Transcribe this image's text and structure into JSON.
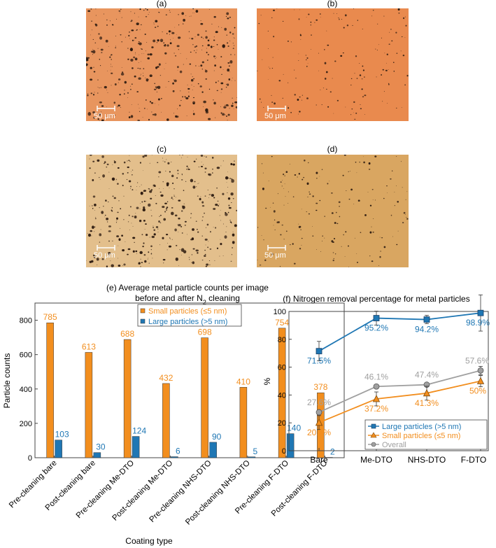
{
  "panels": [
    {
      "label": "(a)",
      "scale_bar": "50 μm",
      "color": "#e8955e",
      "particle_density": "high"
    },
    {
      "label": "(b)",
      "scale_bar": "50 μm",
      "color": "#e98a4e",
      "particle_density": "low"
    },
    {
      "label": "(c)",
      "scale_bar": "50 μm",
      "color": "#e3bf8c",
      "particle_density": "high"
    },
    {
      "label": "(d)",
      "scale_bar": "50 μm",
      "color": "#d9a661",
      "particle_density": "low"
    }
  ],
  "chart_data": [
    {
      "type": "bar",
      "title": "(e) Average metal particle counts per image",
      "subtitle": "before and after N",
      "subtitle_sub": "2",
      "subtitle_end": " cleaning",
      "xlabel": "Coating type",
      "ylabel": "Particle counts",
      "ylim": [
        0,
        900
      ],
      "yticks": [
        0,
        200,
        400,
        600,
        800
      ],
      "categories": [
        "Pre-cleaning bare",
        "Post-cleaning bare",
        "Pre-cleaning Me-DTO",
        "Post-cleaning Me-DTO",
        "Pre-cleaning NHS-DTO",
        "Post-cleaning NHS-DTO",
        "Pre-cleaning F-DTO",
        "Post-cleaning F-DTO"
      ],
      "series": [
        {
          "name": "Small particles (≤5 nm)",
          "color": "#f28e1e",
          "values": [
            785,
            613,
            688,
            432,
            698,
            410,
            754,
            378
          ],
          "labels": [
            "785",
            "613",
            "688",
            "432",
            "698",
            "410",
            "754",
            "378"
          ]
        },
        {
          "name": "Large particles (>5 nm)",
          "color": "#1f77b4",
          "values": [
            103,
            30,
            124,
            6,
            90,
            5,
            140,
            2
          ],
          "labels": [
            "103",
            "30",
            "124",
            "6",
            "90",
            "5",
            "140",
            "2"
          ]
        }
      ],
      "legend": "top"
    },
    {
      "type": "line",
      "title": "(f) Nitrogen removal percentage for metal particles",
      "xlabel": "",
      "ylabel": "%",
      "ylim": [
        0,
        100
      ],
      "yticks": [
        0,
        20,
        40,
        60,
        80,
        100
      ],
      "categories": [
        "Bare",
        "Me-DTO",
        "NHS-DTO",
        "F-DTO"
      ],
      "series": [
        {
          "name": "Large particles (>5 nm)",
          "color": "#1f77b4",
          "marker": "square",
          "values": [
            71.5,
            95.2,
            94.2,
            98.9
          ],
          "labels": [
            "71.5%",
            "95.2%",
            "94.2%",
            "98.9%"
          ],
          "err": [
            7,
            5,
            3,
            13
          ]
        },
        {
          "name": "Small particles (≤5 nm)",
          "color": "#f28e1e",
          "marker": "triangle",
          "values": [
            20.2,
            37.2,
            41.3,
            50
          ],
          "labels": [
            "20.2%",
            "37.2%",
            "41.3%",
            "50%"
          ],
          "err": [
            5,
            5,
            5,
            4
          ]
        },
        {
          "name": "Overall",
          "color": "#a0a0a0",
          "marker": "circle",
          "values": [
            27.6,
            46.1,
            47.4,
            57.6
          ],
          "labels": [
            "27.6%",
            "46.1%",
            "47.4%",
            "57.6%"
          ],
          "err": [
            0,
            0,
            0,
            3
          ]
        }
      ],
      "legend": "bottom-right"
    }
  ]
}
